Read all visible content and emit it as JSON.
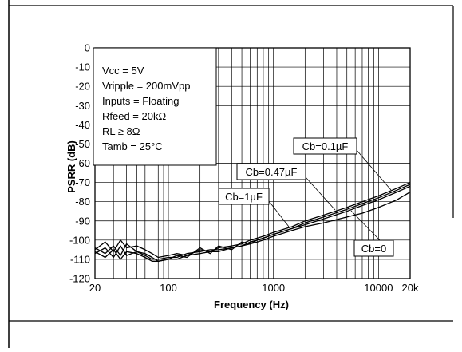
{
  "chart_data": {
    "type": "line",
    "xlabel": "Frequency (Hz)",
    "ylabel": "PSRR (dB)",
    "x_scale": "log",
    "xlim": [
      20,
      20000
    ],
    "ylim": [
      -120,
      0
    ],
    "grid": true,
    "x_ticks": [
      {
        "value": 20,
        "label": "20"
      },
      {
        "value": 100,
        "label": "100"
      },
      {
        "value": 1000,
        "label": "1000"
      },
      {
        "value": 10000,
        "label": "10000"
      },
      {
        "value": 20000,
        "label": "20k"
      }
    ],
    "y_ticks": [
      0,
      -10,
      -20,
      -30,
      -40,
      -50,
      -60,
      -70,
      -80,
      -90,
      -100,
      -110,
      -120
    ],
    "conditions": [
      "Vcc = 5V",
      "Vripple = 200mVpp",
      "Inputs = Floating",
      "Rfeed = 20kΩ",
      "RL ≥ 8Ω",
      "Tamb  = 25°C"
    ],
    "series": [
      {
        "name": "Cb=0.1µF",
        "x": [
          20,
          25,
          30,
          35,
          40,
          50,
          60,
          70,
          80,
          100,
          120,
          150,
          200,
          250,
          300,
          400,
          500,
          600,
          700,
          800,
          1000,
          1500,
          2000,
          3000,
          5000,
          7000,
          10000,
          15000,
          20000
        ],
        "y": [
          -105,
          -101,
          -106,
          -100,
          -104,
          -103,
          -105,
          -107,
          -109,
          -108,
          -107,
          -108,
          -105,
          -106,
          -104,
          -103,
          -102,
          -100,
          -99,
          -98,
          -96,
          -93,
          -90,
          -87,
          -83,
          -80,
          -77,
          -73,
          -70
        ]
      },
      {
        "name": "Cb=0.47µF",
        "x": [
          20,
          25,
          30,
          35,
          40,
          50,
          60,
          70,
          80,
          100,
          120,
          150,
          200,
          250,
          300,
          400,
          500,
          600,
          700,
          800,
          1000,
          1500,
          2000,
          3000,
          5000,
          7000,
          10000,
          15000,
          20000
        ],
        "y": [
          -107,
          -104,
          -109,
          -103,
          -108,
          -106,
          -108,
          -110,
          -110,
          -109,
          -109,
          -107,
          -106,
          -105,
          -105,
          -104,
          -103,
          -101,
          -100,
          -99,
          -97,
          -94,
          -91,
          -88,
          -84,
          -81,
          -78,
          -74,
          -71
        ]
      },
      {
        "name": "Cb=1µF",
        "x": [
          20,
          25,
          30,
          35,
          40,
          50,
          60,
          70,
          80,
          100,
          120,
          150,
          200,
          250,
          300,
          400,
          500,
          600,
          700,
          800,
          1000,
          1500,
          2000,
          3000,
          5000,
          7000,
          10000,
          15000,
          20000
        ],
        "y": [
          -104,
          -107,
          -103,
          -108,
          -102,
          -106,
          -107,
          -109,
          -111,
          -110,
          -108,
          -109,
          -104,
          -107,
          -103,
          -105,
          -101,
          -102,
          -100,
          -99,
          -97,
          -94,
          -92,
          -89,
          -85,
          -82,
          -79,
          -75,
          -72
        ]
      },
      {
        "name": "Cb=0",
        "x": [
          20,
          25,
          30,
          35,
          40,
          50,
          60,
          70,
          80,
          100,
          120,
          150,
          200,
          250,
          300,
          400,
          500,
          600,
          700,
          800,
          1000,
          1500,
          2000,
          3000,
          5000,
          7000,
          10000,
          15000,
          20000
        ],
        "y": [
          -106,
          -109,
          -105,
          -110,
          -106,
          -107,
          -109,
          -111,
          -111,
          -110,
          -110,
          -108,
          -107,
          -106,
          -106,
          -104,
          -103,
          -102,
          -101,
          -100,
          -98,
          -95,
          -93,
          -91,
          -88,
          -86,
          -83,
          -79,
          -75
        ]
      }
    ]
  },
  "colors": {
    "line": "#000000",
    "grid": "#000000",
    "background": "#ffffff"
  }
}
